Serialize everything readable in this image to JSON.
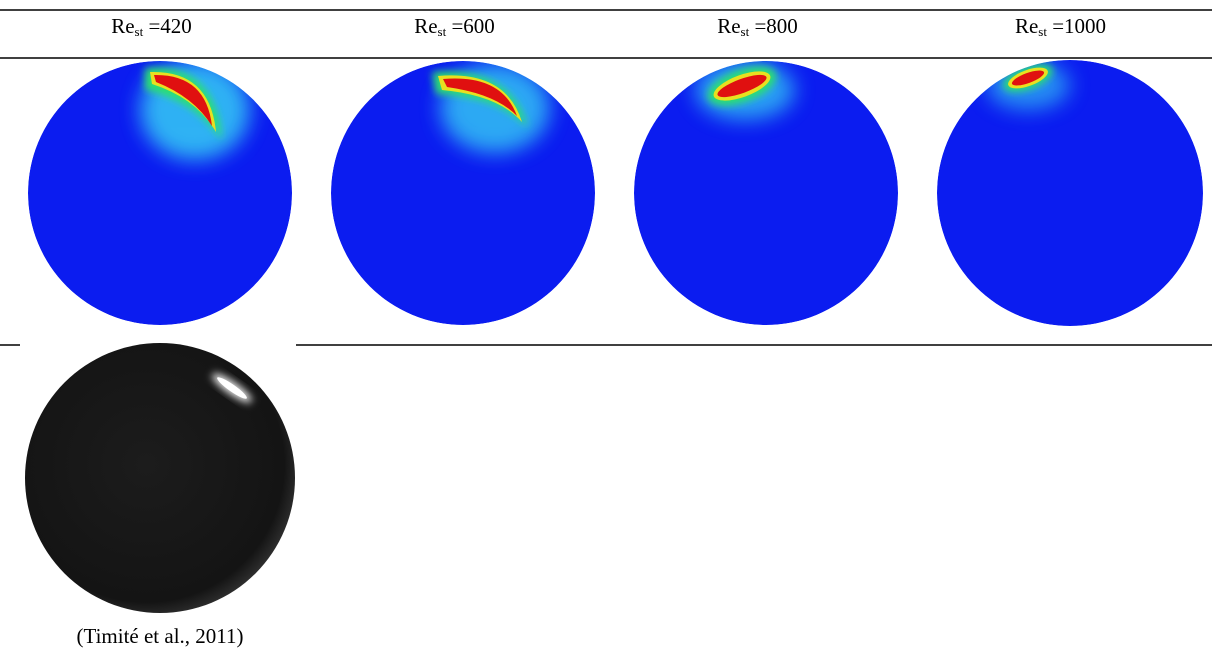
{
  "table": {
    "headers": [
      {
        "main": "Re",
        "sub": "st",
        "rest": " =420"
      },
      {
        "main": "Re",
        "sub": "st",
        "rest": " =600"
      },
      {
        "main": "Re",
        "sub": "st",
        "rest": " =800"
      },
      {
        "main": "Re",
        "sub": "st",
        "rest": " =1000"
      }
    ],
    "caption": "(Timité et al., 2011)"
  }
}
